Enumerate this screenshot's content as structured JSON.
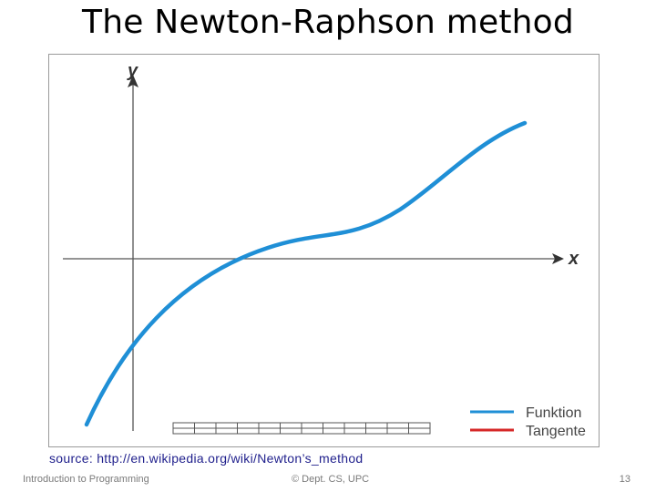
{
  "slide": {
    "title": "The Newton-Raphson method",
    "source": "source: http://en.wikipedia.org/wiki/Newton’s_method"
  },
  "figure": {
    "axis_x_label": "x",
    "axis_y_label": "y",
    "legend": [
      {
        "label": "Funktion",
        "color": "#1f8fd6"
      },
      {
        "label": "Tangente",
        "color": "#d62828"
      }
    ]
  },
  "footer": {
    "course": "Introduction to Programming",
    "department": "© Dept. CS, UPC",
    "page_number": "13"
  }
}
